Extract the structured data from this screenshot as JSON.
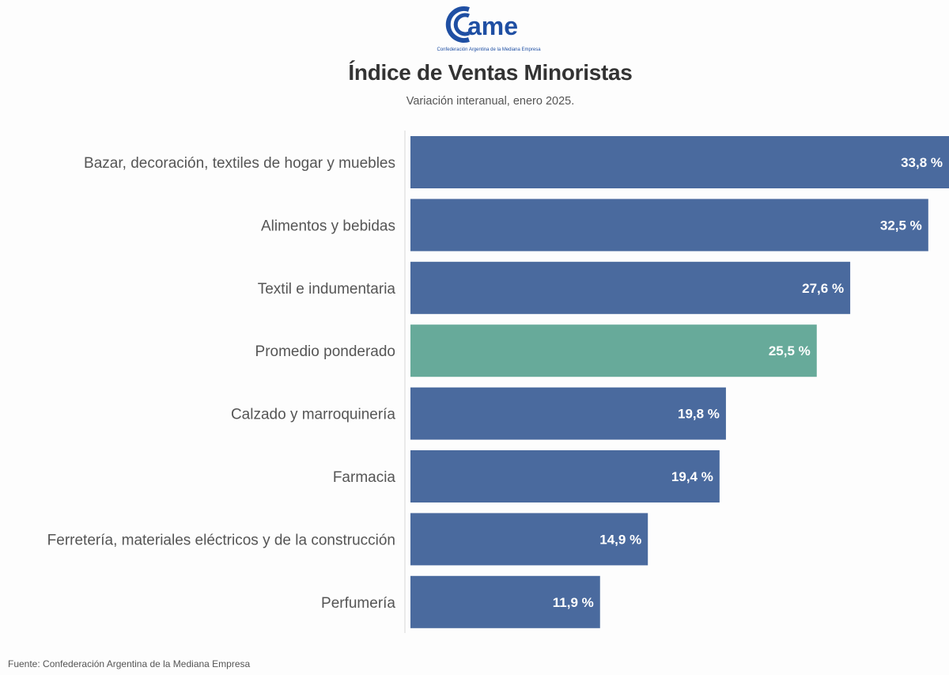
{
  "logo": {
    "text": "cAme",
    "subtitle": "Confederación Argentina de la Mediana Empresa",
    "color": "#1f4fa3"
  },
  "source": "Fuente: Confederación Argentina de la Mediana Empresa",
  "chart_data": {
    "type": "bar",
    "orientation": "horizontal",
    "title": "Índice de Ventas Minoristas",
    "subtitle": "Variación interanual, enero 2025.",
    "xlabel": "",
    "ylabel": "",
    "xlim": [
      0,
      33.8
    ],
    "grid": false,
    "legend": "none",
    "unit": "%",
    "categories": [
      "Bazar, decoración, textiles de hogar y muebles",
      "Alimentos y bebidas",
      "Textil e indumentaria",
      "Promedio ponderado",
      "Calzado y marroquinería",
      "Farmacia",
      "Ferretería, materiales eléctricos y de la construcción",
      "Perfumería"
    ],
    "values": [
      33.8,
      32.5,
      27.6,
      25.5,
      19.8,
      19.4,
      14.9,
      11.9
    ],
    "value_labels": [
      "33,8 %",
      "32,5 %",
      "27,6 %",
      "25,5 %",
      "19,8 %",
      "19,4 %",
      "14,9 %",
      "11,9 %"
    ],
    "highlight_index": 3,
    "colors": {
      "bar": "#4a6a9e",
      "highlight": "#67aa9a"
    }
  }
}
